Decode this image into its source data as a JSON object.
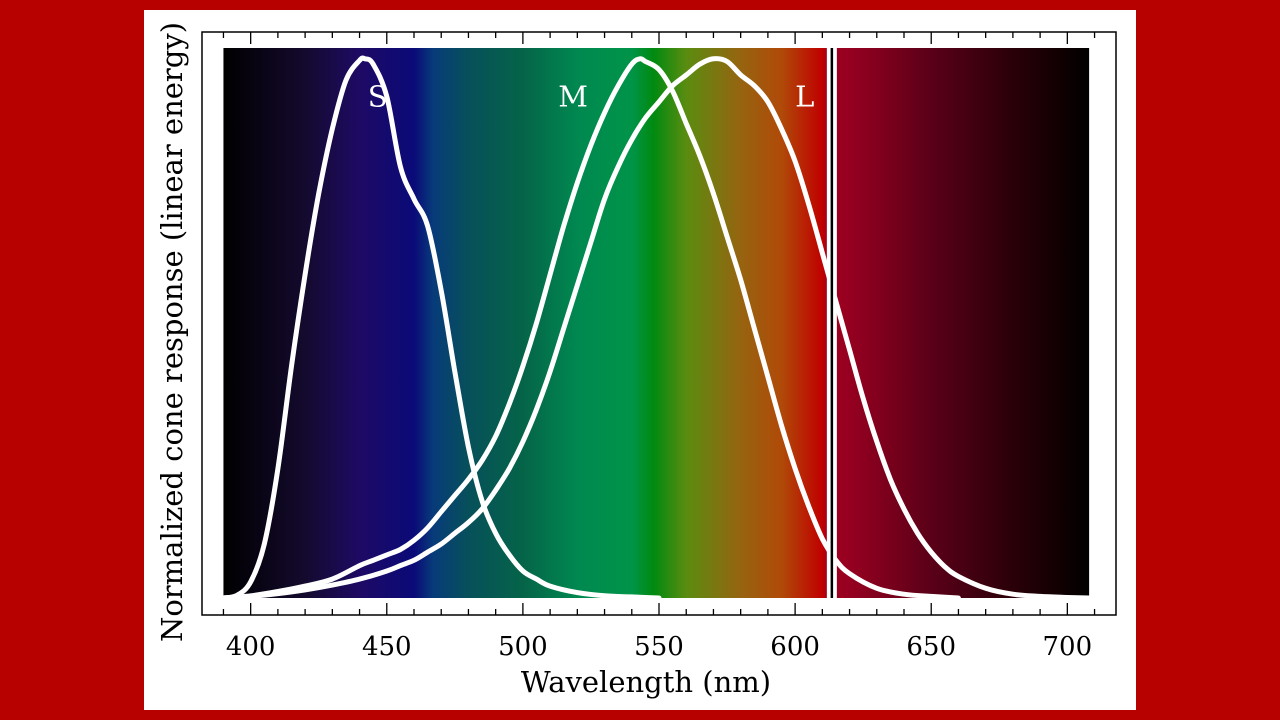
{
  "colors": {
    "page_background": "#b70000",
    "panel_background": "#ffffff",
    "curve_stroke": "#ffffff",
    "spectrum_stops": [
      {
        "nm": 390,
        "color": "#000000"
      },
      {
        "nm": 420,
        "color": "#140a2e"
      },
      {
        "nm": 440,
        "color": "#1e0a64"
      },
      {
        "nm": 460,
        "color": "#0a0a78"
      },
      {
        "nm": 467,
        "color": "#073b7a"
      },
      {
        "nm": 480,
        "color": "#07505a"
      },
      {
        "nm": 500,
        "color": "#056448"
      },
      {
        "nm": 520,
        "color": "#008850"
      },
      {
        "nm": 540,
        "color": "#009448"
      },
      {
        "nm": 548,
        "color": "#008a10"
      },
      {
        "nm": 560,
        "color": "#5a8c10"
      },
      {
        "nm": 580,
        "color": "#966410"
      },
      {
        "nm": 595,
        "color": "#b04a08"
      },
      {
        "nm": 610,
        "color": "#c00000"
      },
      {
        "nm": 612,
        "color": "#a00020"
      },
      {
        "nm": 620,
        "color": "#960020"
      },
      {
        "nm": 650,
        "color": "#5a0018"
      },
      {
        "nm": 680,
        "color": "#2a0008"
      },
      {
        "nm": 705,
        "color": "#050000"
      }
    ]
  },
  "chart_data": {
    "type": "line",
    "title": "",
    "xlabel": "Wavelength (nm)",
    "ylabel": "Normalized cone response (linear energy)",
    "xlim": [
      388,
      712
    ],
    "ylim": [
      0,
      1.02
    ],
    "x_ticks": [
      400,
      450,
      500,
      550,
      600,
      650,
      700
    ],
    "x_tick_labels": [
      "400",
      "450",
      "500",
      "550",
      "600",
      "650",
      "700"
    ],
    "vertical_marker_nm": 613.5,
    "series": [
      {
        "name": "S",
        "label": "S",
        "label_position": {
          "x_nm": 443,
          "y": 0.93
        },
        "points": [
          [
            390,
            0.0
          ],
          [
            395,
            0.005
          ],
          [
            400,
            0.03
          ],
          [
            405,
            0.1
          ],
          [
            410,
            0.24
          ],
          [
            415,
            0.43
          ],
          [
            420,
            0.6
          ],
          [
            425,
            0.75
          ],
          [
            430,
            0.87
          ],
          [
            435,
            0.96
          ],
          [
            440,
            0.997
          ],
          [
            442,
            1.0
          ],
          [
            445,
            0.99
          ],
          [
            450,
            0.93
          ],
          [
            455,
            0.8
          ],
          [
            460,
            0.74
          ],
          [
            465,
            0.69
          ],
          [
            470,
            0.57
          ],
          [
            475,
            0.42
          ],
          [
            480,
            0.28
          ],
          [
            485,
            0.18
          ],
          [
            490,
            0.12
          ],
          [
            495,
            0.08
          ],
          [
            500,
            0.05
          ],
          [
            505,
            0.035
          ],
          [
            510,
            0.022
          ],
          [
            520,
            0.01
          ],
          [
            530,
            0.004
          ],
          [
            540,
            0.002
          ],
          [
            550,
            0.0
          ]
        ]
      },
      {
        "name": "M",
        "label": "M",
        "label_position": {
          "x_nm": 513,
          "y": 0.93
        },
        "points": [
          [
            390,
            0.0
          ],
          [
            400,
            0.004
          ],
          [
            410,
            0.012
          ],
          [
            420,
            0.022
          ],
          [
            430,
            0.035
          ],
          [
            440,
            0.06
          ],
          [
            445,
            0.07
          ],
          [
            450,
            0.08
          ],
          [
            455,
            0.09
          ],
          [
            460,
            0.107
          ],
          [
            465,
            0.13
          ],
          [
            470,
            0.16
          ],
          [
            475,
            0.19
          ],
          [
            480,
            0.22
          ],
          [
            485,
            0.255
          ],
          [
            490,
            0.3
          ],
          [
            495,
            0.36
          ],
          [
            500,
            0.43
          ],
          [
            505,
            0.51
          ],
          [
            510,
            0.6
          ],
          [
            515,
            0.69
          ],
          [
            520,
            0.77
          ],
          [
            525,
            0.84
          ],
          [
            530,
            0.9
          ],
          [
            535,
            0.95
          ],
          [
            540,
            0.99
          ],
          [
            543,
            1.0
          ],
          [
            545,
            0.995
          ],
          [
            550,
            0.98
          ],
          [
            555,
            0.94
          ],
          [
            560,
            0.88
          ],
          [
            565,
            0.82
          ],
          [
            570,
            0.75
          ],
          [
            575,
            0.67
          ],
          [
            580,
            0.59
          ],
          [
            585,
            0.5
          ],
          [
            590,
            0.41
          ],
          [
            595,
            0.32
          ],
          [
            600,
            0.24
          ],
          [
            605,
            0.17
          ],
          [
            610,
            0.11
          ],
          [
            615,
            0.07
          ],
          [
            620,
            0.045
          ],
          [
            630,
            0.018
          ],
          [
            640,
            0.007
          ],
          [
            650,
            0.003
          ],
          [
            660,
            0.0
          ]
        ]
      },
      {
        "name": "L",
        "label": "L",
        "label_position": {
          "x_nm": 600,
          "y": 0.93
        },
        "points": [
          [
            390,
            0.0
          ],
          [
            400,
            0.003
          ],
          [
            410,
            0.008
          ],
          [
            420,
            0.015
          ],
          [
            430,
            0.024
          ],
          [
            440,
            0.035
          ],
          [
            450,
            0.05
          ],
          [
            455,
            0.06
          ],
          [
            460,
            0.07
          ],
          [
            465,
            0.085
          ],
          [
            470,
            0.1
          ],
          [
            475,
            0.12
          ],
          [
            480,
            0.14
          ],
          [
            485,
            0.165
          ],
          [
            490,
            0.2
          ],
          [
            495,
            0.24
          ],
          [
            500,
            0.29
          ],
          [
            505,
            0.35
          ],
          [
            510,
            0.42
          ],
          [
            515,
            0.5
          ],
          [
            520,
            0.58
          ],
          [
            525,
            0.66
          ],
          [
            530,
            0.74
          ],
          [
            535,
            0.8
          ],
          [
            540,
            0.85
          ],
          [
            545,
            0.89
          ],
          [
            550,
            0.92
          ],
          [
            555,
            0.95
          ],
          [
            560,
            0.97
          ],
          [
            565,
            0.99
          ],
          [
            570,
            1.0
          ],
          [
            575,
            0.995
          ],
          [
            580,
            0.97
          ],
          [
            585,
            0.95
          ],
          [
            590,
            0.92
          ],
          [
            595,
            0.87
          ],
          [
            600,
            0.81
          ],
          [
            605,
            0.73
          ],
          [
            610,
            0.64
          ],
          [
            615,
            0.55
          ],
          [
            620,
            0.46
          ],
          [
            625,
            0.37
          ],
          [
            630,
            0.29
          ],
          [
            635,
            0.22
          ],
          [
            640,
            0.165
          ],
          [
            645,
            0.12
          ],
          [
            650,
            0.085
          ],
          [
            655,
            0.058
          ],
          [
            660,
            0.04
          ],
          [
            670,
            0.018
          ],
          [
            680,
            0.007
          ],
          [
            690,
            0.003
          ],
          [
            700,
            0.001
          ],
          [
            708,
            0.0
          ]
        ]
      }
    ]
  }
}
